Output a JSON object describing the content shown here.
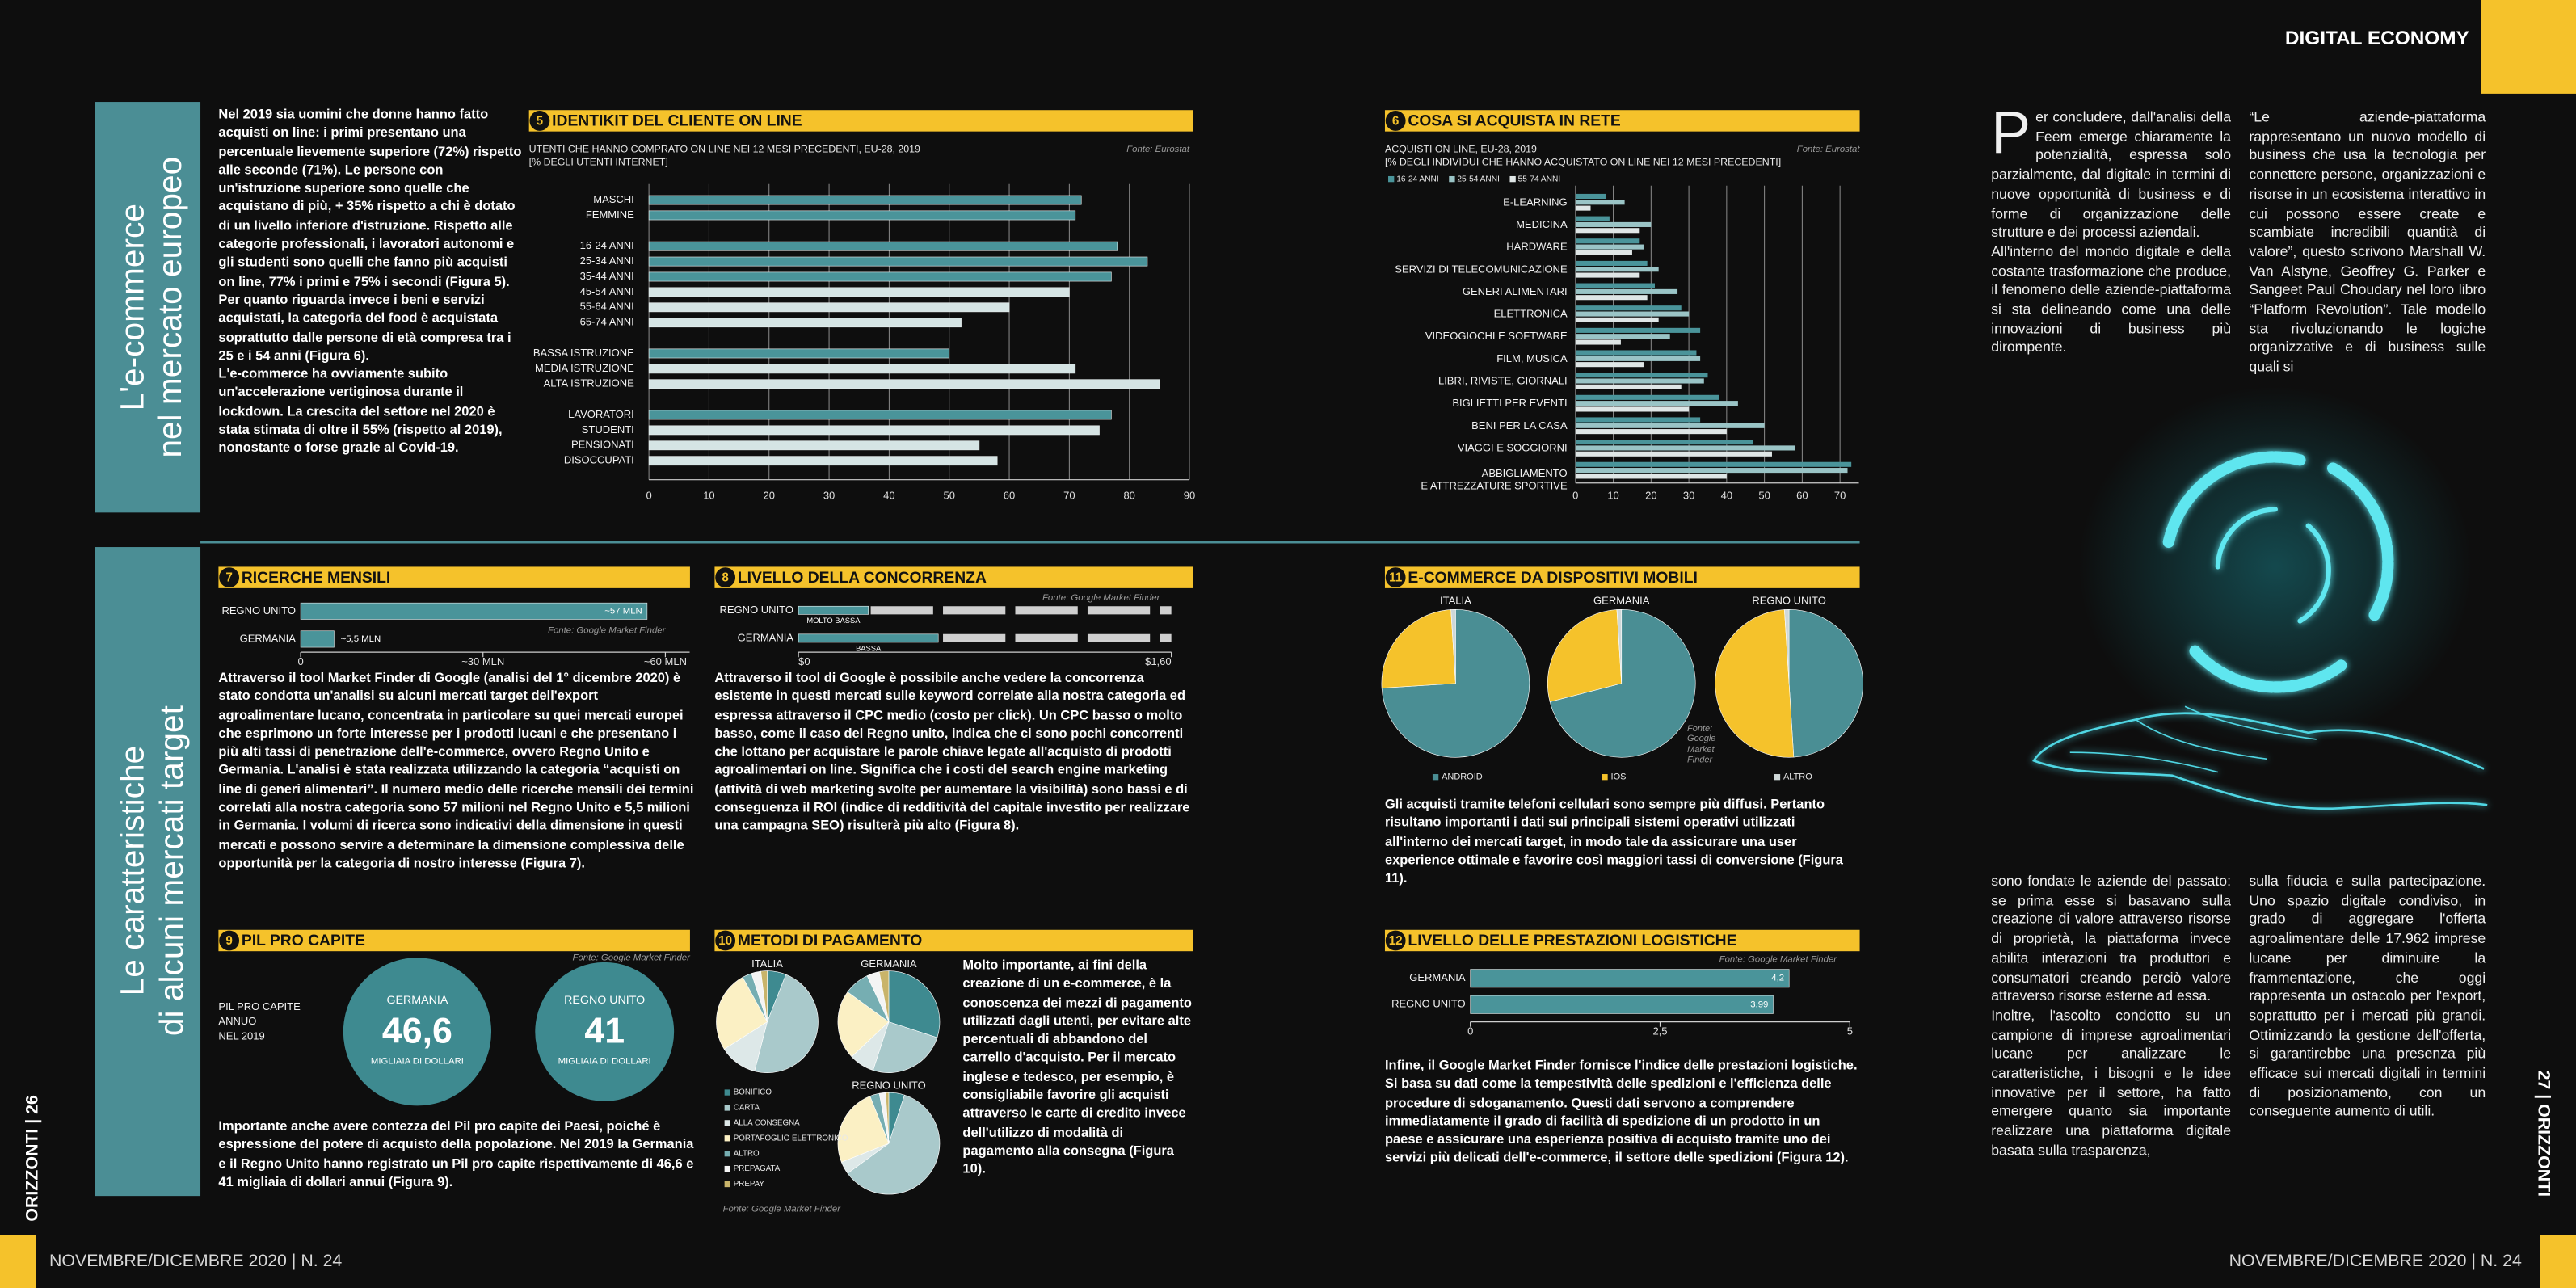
{
  "header": {
    "section": "DIGITAL ECONOMY"
  },
  "sidebar": {
    "top": [
      "L'e-commerce",
      "nel mercato europeo"
    ],
    "bottom": [
      "Le caratteristiche",
      "di alcuni mercati target"
    ]
  },
  "footer": {
    "left_issue": "NOVEMBRE/DICEMBRE 2020 | N. 24",
    "right_issue": "NOVEMBRE/DICEMBRE 2020 | N. 24",
    "left_page": "ORIZZONTI | 26",
    "right_page": "27 | ORIZZONTI"
  },
  "text": {
    "intro": [
      "Nel 2019 sia uomini che donne hanno fatto acquisti on line: i primi presentano una percentuale lievemente superiore (72%) rispetto alle seconde (71%). Le persone con un'istruzione superiore sono quelle che acquistano di più, + 35% rispetto a chi è dotato di un livello inferiore d'istruzione. Rispetto alle categorie professionali, i lavoratori autonomi e gli studenti sono quelli che fanno più acquisti on line, 77% i primi e 75% i secondi (Figura 5).",
      "Per quanto riguarda invece i beni e servizi acquistati, la categoria del food è acquistata soprattutto dalle persone di età compresa tra i 25 e i 54 anni (Figura 6).",
      "L'e-commerce ha ovviamente subito un'accelerazione vertiginosa durante il lockdown. La crescita del settore nel 2020 è stata stimata di oltre il 55% (rispetto al 2019), nonostante o forse grazie al Covid-19."
    ],
    "fig7": "Attraverso il tool Market Finder di Google (analisi del 1° dicembre 2020) è stato condotta un'analisi su alcuni mercati target dell'export agroalimentare lucano, concentrata in particolare su quei mercati europei che esprimono un forte interesse per i prodotti lucani e che presentano i più alti tassi di penetrazione dell'e-commerce, ovvero Regno Unito e Germania. L'analisi è stata realizzata utilizzando la categoria “acquisti on line di generi alimentari”. Il numero medio delle ricerche mensili dei termini correlati alla nostra categoria sono 57 milioni nel Regno Unito e 5,5 milioni in Germania. I volumi di ricerca sono indicativi della dimensione in questi mercati e possono servire a determinare la dimensione complessiva delle opportunità per la categoria di nostro interesse (Figura 7).",
    "fig8": "Attraverso il tool di Google è possibile anche vedere la concorrenza esistente in questi mercati sulle keyword correlate alla nostra categoria ed espressa attraverso il CPC medio (costo per click). Un CPC basso o molto basso, come il caso del Regno unito, indica che ci sono pochi concorrenti che lottano per acquistare le parole chiave legate all'acquisto di prodotti agroalimentari on line. Significa che i costi del search engine marketing (attività di web marketing svolte per aumentare la visibilità) sono bassi e di conseguenza il ROI (indice di redditività del capitale investito per realizzare una campagna SEO) risulterà più alto (Figura 8).",
    "fig9": "Importante anche avere contezza del Pil pro capite dei Paesi, poiché è espressione del potere di acquisto della popolazione. Nel 2019 la Germania e il Regno Unito hanno registrato un Pil pro capite rispettivamente di 46,6 e 41 migliaia di dollari annui (Figura 9).",
    "fig10": "Molto importante, ai fini della creazione di un e-commerce, è la conoscenza dei mezzi di pagamento utilizzati dagli utenti, per evitare alte percentuali di abbandono del carrello d'acquisto. Per il mercato inglese e tedesco, per esempio, è consigliabile favorire gli acquisti attraverso le carte di credito invece dell'utilizzo di modalità di pagamento alla consegna (Figura 10).",
    "fig11": "Gli acquisti tramite telefoni cellulari sono sempre più diffusi. Pertanto risultano importanti i dati sui principali sistemi operativi utilizzati all'interno dei mercati target, in modo tale da assicurare una user experience ottimale e favorire così maggiori tassi di conversione (Figura 11).",
    "fig12": "Infine, il Google Market Finder fornisce l'indice delle prestazioni logistiche. Si basa su dati come la tempestività delle spedizioni e l'efficienza delle procedure di sdoganamento. Questi dati servono a comprendere immediatamente il grado di facilità di spedizione di un prodotto in un paese e assicurare una esperienza positiva di acquisto tramite uno dei servizi più delicati dell'e-commerce, il settore delle spedizioni (Figura 12).",
    "col1_top": [
      "Per concludere, dall'analisi della Feem emerge chiaramente la potenzialità, espressa solo parzialmente, dal digitale in termini di nuove opportunità di business e di forme di organizzazione delle strutture e dei processi aziendali.",
      "All'interno del mondo digitale e della costante trasformazione che produce, il fenomeno delle aziende-piattaforma si sta delineando come una delle innovazioni di business più dirompente."
    ],
    "col2_top": "“Le aziende-piattaforma rappresentano un nuovo modello di business che usa la tecnologia per connettere persone, organizzazioni e risorse in un ecosistema interattivo in cui possono essere create e scambiate incredibili quantità di valore”, questo scrivono Marshall W. Van Alstyne, Geoffrey G. Parker e Sangeet Paul Choudary nel loro libro “Platform Revolution”. Tale modello sta rivoluzionando le logiche organizzative e di business sulle quali si",
    "col1_bottom": [
      "sono fondate le aziende del passato: se prima esse si basavano sulla creazione di valore attraverso risorse di proprietà, la piattaforma invece abilita interazioni tra produttori e consumatori creando perciò valore attraverso risorse esterne ad essa.",
      "Inoltre, l'ascolto condotto su un campione di imprese agroalimentari lucane per analizzare le caratteristiche, i bisogni e le idee innovative per il settore, ha fatto emergere quanto sia importante realizzare una piattaforma digitale basata sulla trasparenza,"
    ],
    "col2_bottom": "sulla fiducia e sulla partecipazione. Uno spazio digitale condiviso, in grado di aggregare l'offerta agroalimentare delle 17.962 imprese lucane per diminuire la frammentazione, che oggi rappresenta un ostacolo per l'export, soprattutto per i mercati più grandi. Ottimizzando la gestione dell'offerta, si garantirebbe una presenza più efficace sui mercati digitali in termini di posizionamento, con un conseguente aumento di utili."
  },
  "figures": [
    {
      "number": 5,
      "type": "bar",
      "title": "IDENTIKIT DEL CLIENTE ON LINE",
      "subtitle": [
        "UTENTI CHE HANNO COMPRATO ON LINE NEI 12 MESI PRECEDENTI, EU-28, 2019",
        "[% DEGLI UTENTI INTERNET]"
      ],
      "source": "Fonte: Eurostat",
      "categories": [
        "MASCHI",
        "FEMMINE",
        "16-24 ANNI",
        "25-34 ANNI",
        "35-44 ANNI",
        "45-54 ANNI",
        "55-64 ANNI",
        "65-74 ANNI",
        "BASSA ISTRUZIONE",
        "MEDIA ISTRUZIONE",
        "ALTA ISTRUZIONE",
        "LAVORATORI",
        "STUDENTI",
        "PENSIONATI",
        "DISOCCUPATI"
      ],
      "values": [
        72,
        71,
        78,
        83,
        77,
        70,
        60,
        52,
        50,
        71,
        85,
        77,
        75,
        55,
        58
      ],
      "colors": [
        "#4a949a",
        "#4a949a",
        "#4a949a",
        "#4a949a",
        "#4a949a",
        "#d5e4e4",
        "#d5e4e4",
        "#d5e4e4",
        "#4a949a",
        "#d5e4e4",
        "#d5e4e4",
        "#4a949a",
        "#d5e4e4",
        "#d5e4e4",
        "#d5e4e4"
      ],
      "xlim": [
        0,
        90
      ],
      "xticks": [
        0,
        10,
        20,
        30,
        40,
        50,
        60,
        70,
        80,
        90
      ],
      "grid": true
    },
    {
      "number": 6,
      "type": "grouped",
      "title": "COSA SI ACQUISTA IN RETE",
      "subtitle": [
        "ACQUISTI ON LINE, EU-28, 2019",
        "[% DEGLI INDIVIDUI CHE HANNO ACQUISTATO ON LINE NEI 12 MESI PRECEDENTI]"
      ],
      "source": "Fonte: Eurostat",
      "categories": [
        "E-LEARNING",
        "MEDICINA",
        "HARDWARE",
        "SERVIZI DI TELECOMUNICAZIONE",
        "GENERI ALIMENTARI",
        "ELETTRONICA",
        "VIDEOGIOCHI E SOFTWARE",
        "FILM, MUSICA",
        "LIBRI, RIVISTE, GIORNALI",
        "BIGLIETTI PER EVENTI",
        "BENI PER LA CASA",
        "VIAGGI E SOGGIORNI",
        [
          "ABBIGLIAMENTO",
          "E ATTREZZATURE SPORTIVE"
        ]
      ],
      "series": [
        {
          "name": "16-24 ANNI",
          "color": "#4a949a",
          "values": [
            8,
            9,
            17,
            19,
            21,
            28,
            33,
            32,
            35,
            38,
            33,
            47,
            73
          ]
        },
        {
          "name": "25-54 ANNI",
          "color": "#9ac4c6",
          "values": [
            13,
            20,
            18,
            22,
            27,
            30,
            25,
            33,
            34,
            43,
            50,
            58,
            72
          ]
        },
        {
          "name": "55-74 ANNI",
          "color": "#dfe6e6",
          "values": [
            4,
            17,
            15,
            17,
            19,
            22,
            12,
            18,
            28,
            30,
            40,
            52,
            40
          ]
        }
      ],
      "xlim": [
        0,
        75
      ],
      "xticks": [
        0,
        10,
        20,
        30,
        40,
        50,
        60,
        70
      ],
      "grid": true
    },
    {
      "number": 7,
      "type": "bar",
      "title": "RICERCHE MENSILI",
      "source": "Fonte: Google Market Finder",
      "categories": [
        "REGNO UNITO",
        "GERMANIA"
      ],
      "values": [
        57,
        5.5
      ],
      "value_labels": [
        "~57 MLN",
        "~5,5 MLN"
      ],
      "color": "#4a949a",
      "xlim": [
        0,
        64
      ],
      "xticks": [
        0,
        {
          "value": 30,
          "label": "~30 MLN"
        },
        {
          "value": 60,
          "label": "~60 MLN"
        }
      ],
      "grid": false
    },
    {
      "number": 8,
      "type": "bar",
      "title": "LIVELLO DELLA CONCORRENZA",
      "source": "Fonte: Google Market Finder",
      "categories": [
        "REGNO UNITO",
        "GERMANIA"
      ],
      "values": [
        0.3,
        0.6
      ],
      "value_labels": [
        "MOLTO BASSA",
        "BASSA"
      ],
      "color": "#4a949a",
      "xlim": [
        0,
        1.6
      ],
      "xticks": [
        {
          "value": 0,
          "label": "$0"
        },
        {
          "value": 1.6,
          "label": "$1,60"
        }
      ],
      "grid": false
    },
    {
      "number": 9,
      "type": "circles",
      "title": "PIL PRO CAPITE",
      "source": "Fonte: Google Market Finder",
      "label": [
        "PIL PRO CAPITE",
        "ANNUO",
        "NEL 2019"
      ],
      "units": "MIGLIAIA DI DOLLARI",
      "categories": [
        "GERMANIA",
        "REGNO UNITO"
      ],
      "values": [
        46.6,
        41
      ],
      "value_labels": [
        "46,6",
        "41"
      ],
      "color": "#3e8a90"
    },
    {
      "number": 10,
      "type": "pie",
      "title": "METODI DI PAGAMENTO",
      "source": "Fonte: Google Market Finder",
      "categories": [
        "BONIFICO",
        "CARTA",
        "ALLA CONSEGNA",
        "PORTAFOGLIO ELETTRONICO",
        "ALTRO",
        "PREPAGATA",
        "PREPAY"
      ],
      "colors": [
        "#3e8a90",
        "#a9c9cb",
        "#dde8e8",
        "#fbf0c4",
        "#76aeb2",
        "#f4f4f4",
        "#c9b46a"
      ],
      "pies": [
        {
          "name": "ITALIA",
          "values": [
            6,
            48,
            12,
            26,
            3,
            3,
            2
          ]
        },
        {
          "name": "GERMANIA",
          "values": [
            30,
            25,
            8,
            22,
            8,
            4,
            3
          ]
        },
        {
          "name": "REGNO UNITO",
          "values": [
            5,
            60,
            4,
            25,
            3,
            2,
            1
          ]
        }
      ]
    },
    {
      "number": 11,
      "type": "pie",
      "title": "E-COMMERCE DA DISPOSITIVI MOBILI",
      "source": "Fonte: Google Market Finder",
      "categories": [
        "ANDROID",
        "IOS",
        "ALTRO"
      ],
      "colors": [
        "#4a8e94",
        "#f5c22b",
        "#cfd8d8"
      ],
      "pies": [
        {
          "name": "ITALIA",
          "values": [
            74,
            25,
            1
          ]
        },
        {
          "name": "GERMANIA",
          "values": [
            71,
            28,
            1
          ]
        },
        {
          "name": "REGNO UNITO",
          "values": [
            49,
            50,
            1
          ]
        }
      ]
    },
    {
      "number": 12,
      "type": "bar",
      "title": "LIVELLO DELLE PRESTAZIONI LOGISTICHE",
      "source": "Fonte: Google Market Finder",
      "categories": [
        "GERMANIA",
        "REGNO UNITO"
      ],
      "values": [
        4.2,
        3.99
      ],
      "value_labels": [
        "4,2",
        "3,99"
      ],
      "color": "#4a949a",
      "xlim": [
        0,
        5
      ],
      "xticks": [
        0,
        {
          "value": 2.5,
          "label": "2,5"
        },
        5
      ],
      "grid": false
    }
  ]
}
